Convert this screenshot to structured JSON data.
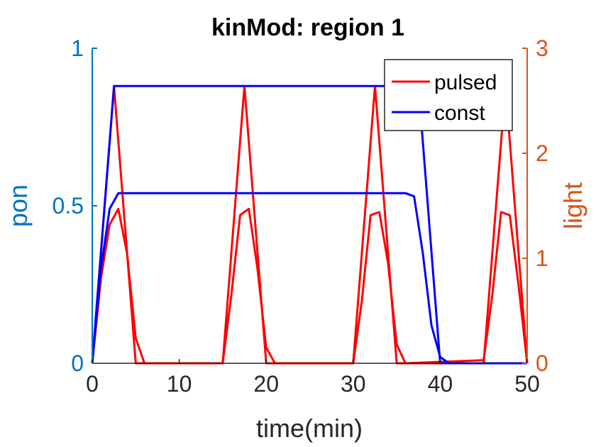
{
  "chart_data": {
    "type": "line",
    "title": "kinMod: region 1",
    "xlabel": "time(min)",
    "ylabel_left": "pon",
    "ylabel_right": "light",
    "xlim": [
      0,
      50
    ],
    "ylim_left": [
      0,
      1
    ],
    "ylim_right": [
      0,
      3
    ],
    "xticks": [
      "0",
      "10",
      "20",
      "30",
      "40",
      "50"
    ],
    "yticks_left": [
      "0",
      "0.5",
      "1"
    ],
    "yticks_right": [
      "0",
      "1",
      "2",
      "3"
    ],
    "left_axis_color": "#0072BD",
    "right_axis_color": "#D95319",
    "legend_position": "top-right",
    "grid": false,
    "series": [
      {
        "name": "pulsed",
        "axis": "right",
        "role": "light",
        "color": "#FF0000",
        "x": [
          0,
          2.5,
          5,
          15,
          17.5,
          20,
          30,
          32.5,
          35,
          45,
          47.5,
          50
        ],
        "y": [
          0,
          2.64,
          0,
          0,
          2.64,
          0,
          0,
          2.64,
          0,
          0,
          2.64,
          0
        ]
      },
      {
        "name": "pulsed",
        "axis": "left",
        "role": "pon",
        "color": "#FF0000",
        "x": [
          0,
          1,
          2,
          3,
          4,
          5,
          6,
          15,
          16,
          17,
          18,
          19,
          20,
          21,
          30,
          31,
          32,
          33,
          34,
          35,
          36,
          45,
          46,
          47,
          48,
          49,
          50
        ],
        "y": [
          0,
          0.27,
          0.44,
          0.49,
          0.35,
          0.08,
          0,
          0,
          0.22,
          0.47,
          0.49,
          0.3,
          0.05,
          0,
          0,
          0.2,
          0.47,
          0.48,
          0.32,
          0.06,
          0,
          0.01,
          0.22,
          0.48,
          0.47,
          0.25,
          0
        ]
      },
      {
        "name": "const",
        "axis": "right",
        "role": "light",
        "color": "#0000FF",
        "x": [
          0,
          2.5,
          37.5,
          40,
          50
        ],
        "y": [
          0,
          2.64,
          2.64,
          0,
          0
        ]
      },
      {
        "name": "const",
        "axis": "left",
        "role": "pon",
        "color": "#0000FF",
        "x": [
          0,
          1,
          2,
          3,
          36,
          37,
          38,
          39,
          40,
          41,
          50
        ],
        "y": [
          0,
          0.3,
          0.49,
          0.54,
          0.54,
          0.53,
          0.35,
          0.12,
          0.02,
          0,
          0
        ]
      }
    ],
    "legend": [
      {
        "label": "pulsed",
        "color": "#FF0000"
      },
      {
        "label": "const",
        "color": "#0000FF"
      }
    ]
  }
}
